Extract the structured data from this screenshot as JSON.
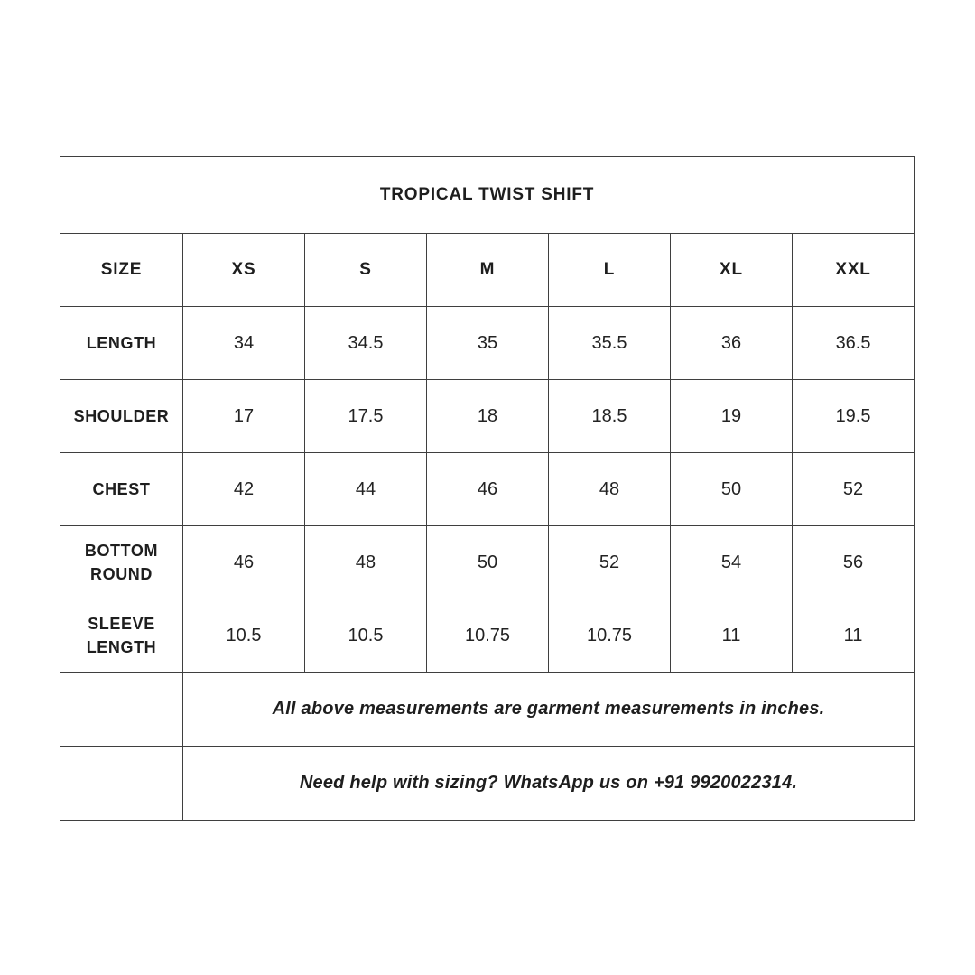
{
  "colors": {
    "background": "#ffffff",
    "text": "#1e1e1e",
    "border": "#3f3f3f"
  },
  "table": {
    "title": "TROPICAL TWIST SHIFT",
    "header": [
      "SIZE",
      "XS",
      "S",
      "M",
      "L",
      "XL",
      "XXL"
    ],
    "rows": [
      {
        "label": "LENGTH",
        "values": [
          "34",
          "34.5",
          "35",
          "35.5",
          "36",
          "36.5"
        ]
      },
      {
        "label": "SHOULDER",
        "values": [
          "17",
          "17.5",
          "18",
          "18.5",
          "19",
          "19.5"
        ]
      },
      {
        "label": "CHEST",
        "values": [
          "42",
          "44",
          "46",
          "48",
          "50",
          "52"
        ]
      },
      {
        "label": "BOTTOM ROUND",
        "values": [
          "46",
          "48",
          "50",
          "52",
          "54",
          "56"
        ]
      },
      {
        "label": "SLEEVE LENGTH",
        "values": [
          "10.5",
          "10.5",
          "10.75",
          "10.75",
          "11",
          "11"
        ]
      }
    ],
    "notes": [
      "All above measurements are garment measurements in inches.",
      "Need help with sizing? WhatsApp us on +91 9920022314."
    ]
  }
}
